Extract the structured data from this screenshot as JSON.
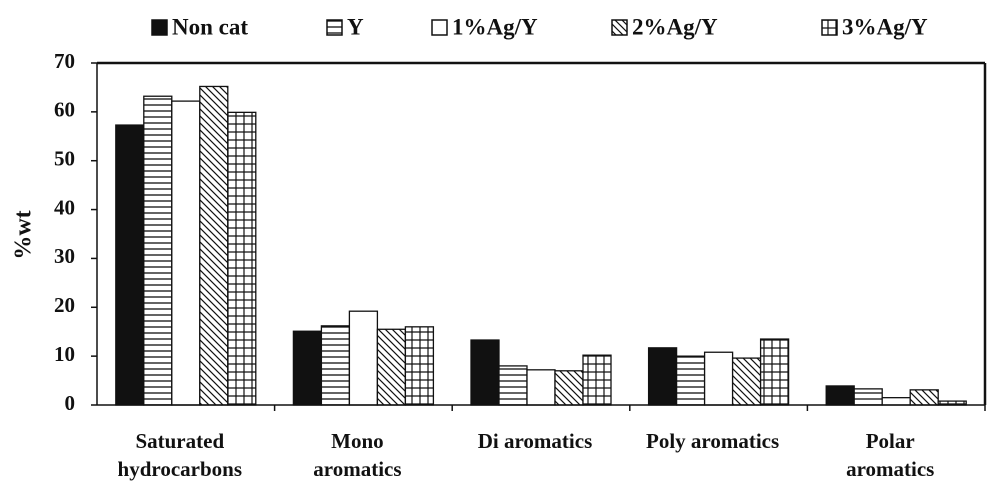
{
  "chart_data": {
    "type": "bar",
    "ylabel": "%wt",
    "categories": [
      [
        "Saturated",
        "hydrocarbons"
      ],
      [
        "Mono",
        "aromatics"
      ],
      [
        "Di aromatics"
      ],
      [
        "Poly aromatics"
      ],
      [
        "Polar",
        "aromatics"
      ]
    ],
    "series": [
      {
        "name": "Non cat",
        "color": "#111111",
        "pattern": "solid",
        "values": [
          57.3,
          15.1,
          13.3,
          11.7,
          3.9
        ]
      },
      {
        "name": "Y",
        "color": "#111111",
        "pattern": "horizontal",
        "values": [
          63.2,
          16.2,
          8.0,
          10.0,
          3.3
        ]
      },
      {
        "name": "1%Ag/Y",
        "color": "#111111",
        "pattern": "none",
        "values": [
          62.2,
          19.2,
          7.2,
          10.8,
          1.5
        ]
      },
      {
        "name": "2%Ag/Y",
        "color": "#111111",
        "pattern": "diagonal",
        "values": [
          65.2,
          15.5,
          7.0,
          9.6,
          3.1
        ]
      },
      {
        "name": "3%Ag/Y",
        "color": "#111111",
        "pattern": "grid",
        "values": [
          59.9,
          16.0,
          10.2,
          13.5,
          0.8
        ]
      }
    ],
    "ylim": [
      0,
      70
    ],
    "yticks": [
      0,
      10,
      20,
      30,
      40,
      50,
      60,
      70
    ],
    "legend": "top"
  }
}
